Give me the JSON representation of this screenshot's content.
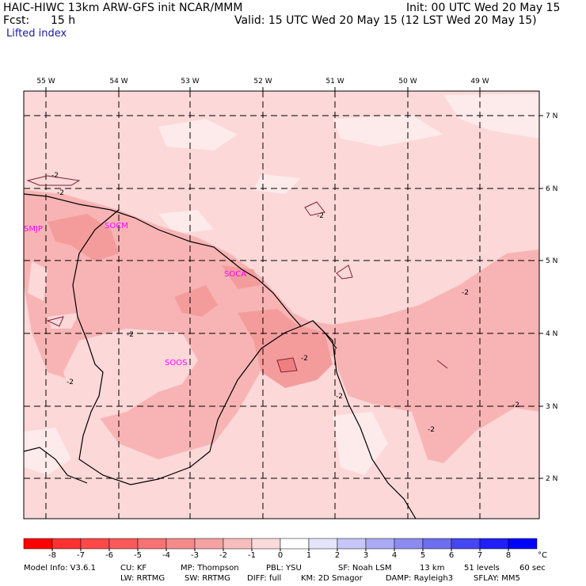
{
  "header": {
    "model_title": "HAIC-HIWC 13km ARW-GFS init   NCAR/MMM",
    "init": "Init: 00 UTC Wed 20 May 15",
    "fcst_label": "Fcst:",
    "fcst_value": "15 h",
    "valid": "Valid: 15 UTC Wed 20 May 15 (12 LST Wed 20 May 15)",
    "field": "Lifted index"
  },
  "map": {
    "lon_labels": [
      "55 W",
      "54 W",
      "53 W",
      "52 W",
      "51 W",
      "50 W",
      "49 W"
    ],
    "lat_labels": [
      "7 N",
      "6 N",
      "5 N",
      "4 N",
      "3 N",
      "2 N"
    ],
    "stations": [
      "SMJP",
      "SOCM",
      "SOCA",
      "SOOS"
    ],
    "contour_labels": [
      "-2",
      "-2",
      "-2",
      "-2",
      "-2",
      "-2",
      "-2",
      "-2",
      "-2",
      "-2"
    ],
    "colors": {
      "bg_light": "#fcd8d8",
      "mid": "#f8b4b4",
      "strong": "#f49c9c",
      "very_light": "#fdeaea",
      "station": "#ff00ff"
    }
  },
  "colorbar": {
    "ticks": [
      "-8",
      "-7",
      "-6",
      "-5",
      "-4",
      "-3",
      "-2",
      "-1",
      "0",
      "1",
      "2",
      "3",
      "4",
      "5",
      "6",
      "7",
      "8"
    ],
    "unit": "°C",
    "colors": [
      "#ff0000",
      "#ff3232",
      "#ff4848",
      "#fa5a5a",
      "#f77272",
      "#f58a8a",
      "#f6a2a2",
      "#f8bebe",
      "#fbdada",
      "#ffffff",
      "#e4e4fc",
      "#c6c6f8",
      "#aaaaf4",
      "#8c8cf0",
      "#6e6ef0",
      "#4646f2",
      "#2020f6",
      "#0000ff"
    ]
  },
  "footer": {
    "line1": [
      "Model Info: V3.6.1",
      "CU: KF",
      "MP: Thompson",
      "PBL: YSU",
      "SF: Noah LSM",
      "13 km",
      "51 levels",
      "60 sec"
    ],
    "line2": [
      "LW: RRTMG",
      "SW: RRTMG",
      "DIFF: full",
      "KM: 2D Smagor",
      "DAMP: Rayleigh3",
      "SFLAY: MM5"
    ]
  }
}
